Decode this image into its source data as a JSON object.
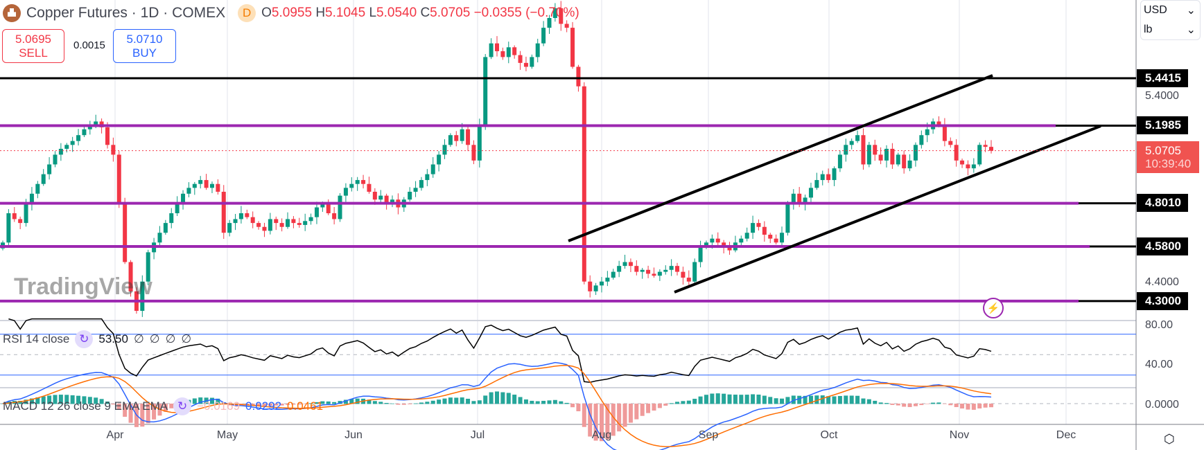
{
  "header": {
    "symbol": "Copper Futures",
    "interval": "1D",
    "exchange": "COMEX",
    "delayed_badge": "D",
    "open_label": "O",
    "open": "5.0955",
    "high_label": "H",
    "high": "5.1045",
    "low_label": "L",
    "low": "5.0540",
    "close_label": "C",
    "close": "5.0705",
    "change": "−0.0355",
    "change_pct": "(−0.70%)"
  },
  "trade": {
    "sell_price": "5.0695",
    "sell_label": "SELL",
    "spread": "0.0015",
    "buy_price": "5.0710",
    "buy_label": "BUY"
  },
  "unit_selector": {
    "currency": "USD",
    "unit": "lb"
  },
  "price_axis": {
    "levels": [
      "5.4415",
      "5.1985",
      "4.8010",
      "4.5800",
      "4.3000"
    ],
    "ticks": [
      "5.4000",
      "4.4000"
    ],
    "current_price": "5.0705",
    "countdown": "10:39:40"
  },
  "rsi": {
    "label": "RSI 14 close",
    "value": "53.50",
    "extras": [
      "∅",
      "∅",
      "∅",
      "∅"
    ],
    "axis": [
      "80.00",
      "40.00"
    ]
  },
  "macd": {
    "label": "MACD 12 26 close 9 EMA EMA",
    "hist": "−0.0169",
    "macd": "0.0292",
    "signal": "0.0461",
    "axis": "0.0000"
  },
  "time_axis": [
    "Apr",
    "May",
    "Jun",
    "Jul",
    "Aug",
    "Sep",
    "Oct",
    "Nov",
    "Dec"
  ],
  "watermark": "TradingView",
  "colors": {
    "up": "#089981",
    "down": "#f23645",
    "level": "#9c27b0",
    "rsi_band": "#2962ff",
    "macd": "#2962ff",
    "signal": "#ff6d00"
  },
  "chart_data": {
    "type": "candlestick",
    "approx_closes": [
      4.6,
      4.75,
      4.72,
      4.7,
      4.8,
      4.85,
      4.9,
      4.95,
      5.0,
      5.05,
      5.08,
      5.1,
      5.12,
      5.15,
      5.18,
      5.2,
      5.22,
      5.19,
      5.1,
      5.05,
      4.8,
      4.5,
      4.35,
      4.25,
      4.4,
      4.55,
      4.6,
      4.65,
      4.7,
      4.75,
      4.8,
      4.85,
      4.88,
      4.9,
      4.92,
      4.88,
      4.9,
      4.86,
      4.65,
      4.7,
      4.72,
      4.75,
      4.73,
      4.7,
      4.68,
      4.66,
      4.72,
      4.7,
      4.68,
      4.72,
      4.7,
      4.69,
      4.71,
      4.73,
      4.78,
      4.8,
      4.75,
      4.72,
      4.84,
      4.88,
      4.9,
      4.92,
      4.9,
      4.86,
      4.82,
      4.84,
      4.8,
      4.82,
      4.78,
      4.82,
      4.86,
      4.88,
      4.92,
      4.95,
      5.0,
      5.05,
      5.1,
      5.15,
      5.12,
      5.18,
      5.1,
      5.02,
      5.2,
      5.55,
      5.62,
      5.58,
      5.55,
      5.6,
      5.56,
      5.52,
      5.5,
      5.55,
      5.62,
      5.7,
      5.75,
      5.8,
      5.72,
      5.7,
      5.5,
      5.4,
      4.4,
      4.35,
      4.38,
      4.4,
      4.42,
      4.45,
      4.48,
      4.5,
      4.48,
      4.45,
      4.46,
      4.44,
      4.43,
      4.45,
      4.46,
      4.48,
      4.45,
      4.42,
      4.4,
      4.5,
      4.58,
      4.6,
      4.62,
      4.6,
      4.58,
      4.56,
      4.6,
      4.62,
      4.65,
      4.7,
      4.68,
      4.64,
      4.62,
      4.6,
      4.65,
      4.8,
      4.85,
      4.8,
      4.83,
      4.88,
      4.92,
      4.95,
      4.92,
      4.98,
      5.05,
      5.1,
      5.12,
      5.15,
      5.0,
      5.1,
      5.05,
      5.02,
      5.08,
      5.0,
      5.05,
      4.98,
      5.02,
      5.1,
      5.15,
      5.18,
      5.22,
      5.2,
      5.12,
      5.1,
      5.02,
      5.0,
      4.98,
      5.0,
      5.1,
      5.09,
      5.07
    ]
  }
}
